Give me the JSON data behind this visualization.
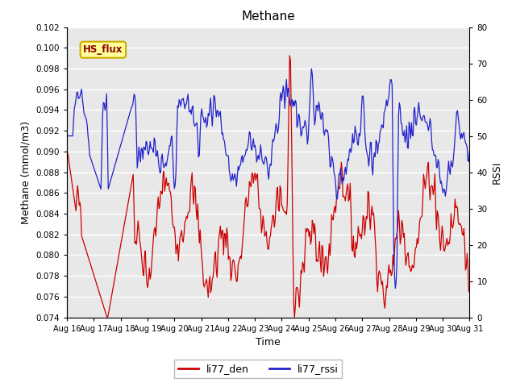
{
  "title": "Methane",
  "ylabel_left": "Methane (mmol/m3)",
  "ylabel_right": "RSSI",
  "xlabel": "Time",
  "ylim_left": [
    0.074,
    0.102
  ],
  "ylim_right": [
    0,
    80
  ],
  "legend_labels": [
    "li77_den",
    "li77_rssi"
  ],
  "legend_colors": [
    "#cc0000",
    "#2222cc"
  ],
  "annotation_text": "HS_flux",
  "annotation_bg": "#ffff99",
  "annotation_border": "#ccaa00",
  "plot_bg": "#e8e8e8",
  "fig_bg": "#ffffff",
  "grid_color": "#ffffff",
  "x_start": 16,
  "x_end": 31,
  "x_ticks": [
    16,
    17,
    18,
    19,
    20,
    21,
    22,
    23,
    24,
    25,
    26,
    27,
    28,
    29,
    30,
    31
  ],
  "x_tick_labels": [
    "Aug 16",
    "Aug 17",
    "Aug 18",
    "Aug 19",
    "Aug 20",
    "Aug 21",
    "Aug 22",
    "Aug 23",
    "Aug 24",
    "Aug 25",
    "Aug 26",
    "Aug 27",
    "Aug 28",
    "Aug 29",
    "Aug 30",
    "Aug 31"
  ],
  "yticks_left": [
    0.074,
    0.076,
    0.078,
    0.08,
    0.082,
    0.084,
    0.086,
    0.088,
    0.09,
    0.092,
    0.094,
    0.096,
    0.098,
    0.1,
    0.102
  ],
  "yticks_right": [
    0,
    10,
    20,
    30,
    40,
    50,
    60,
    70,
    80
  ]
}
